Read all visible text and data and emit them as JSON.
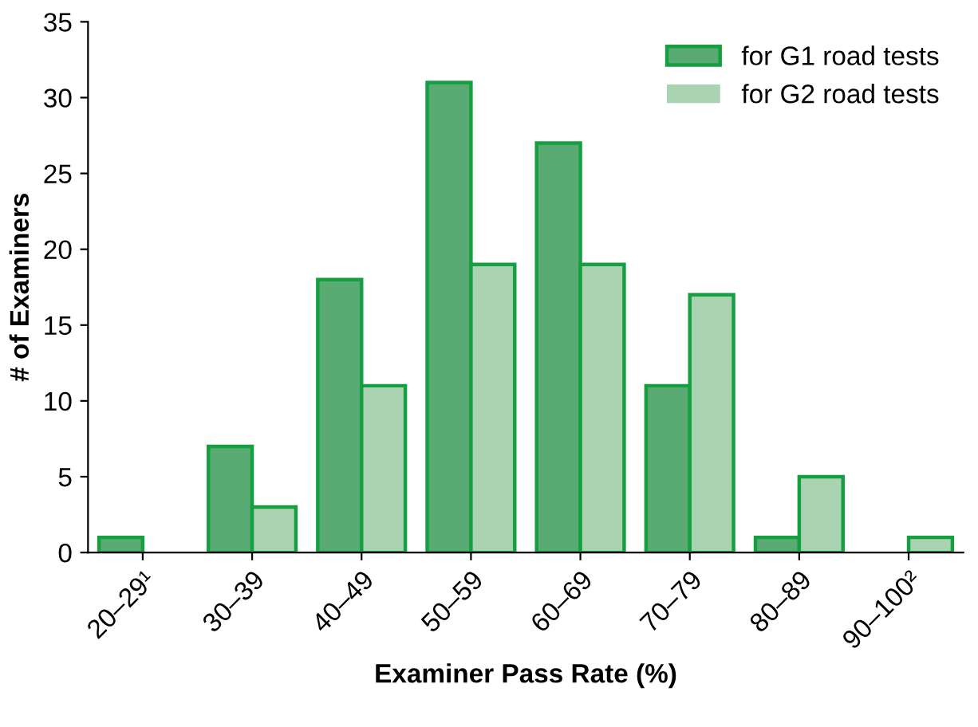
{
  "chart_data": {
    "type": "bar",
    "xlabel": "Examiner Pass Rate (%)",
    "ylabel": "# of Examiners",
    "categories": [
      "20–29¹",
      "30–39",
      "40–49",
      "50–59",
      "60–69",
      "70–79",
      "80–89",
      "90–100²"
    ],
    "series": [
      {
        "name": "for G1 road tests",
        "color": "#5aaa74",
        "values": [
          1,
          7,
          18,
          31,
          27,
          11,
          1,
          0
        ]
      },
      {
        "name": "for G2 road tests",
        "color": "#a9d3b1",
        "values": [
          0,
          3,
          11,
          19,
          19,
          17,
          5,
          1
        ]
      }
    ],
    "ylim": [
      0,
      35
    ],
    "yticks": [
      0,
      5,
      10,
      15,
      20,
      25,
      30,
      35
    ],
    "grid": false,
    "legend": "top right"
  }
}
